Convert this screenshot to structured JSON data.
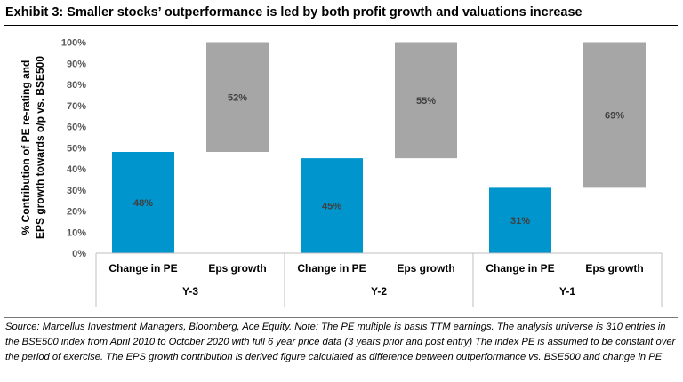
{
  "title": "Exhibit 3: Smaller stocks’ outperformance is led by both profit growth and valuations increase",
  "source_note": "Source: Marcellus Investment Managers, Bloomberg, Ace Equity. Note: The PE multiple is basis TTM earnings. The analysis universe is 310 entries in the BSE500 index from April 2010 to October 2020 with full 6 year price data (3 years prior and post entry) The index PE is assumed to be constant over the period of exercise. The EPS growth contribution is derived figure calculated as difference between outperformance vs. BSE500 and change in PE",
  "chart_data": {
    "type": "bar",
    "stacked_offset": true,
    "title": "Exhibit 3: Smaller stocks’ outperformance is led by both profit growth and valuations increase",
    "ylabel_lines": [
      "% Contribution of PE re-rating and",
      "EPS growth towards o/p vs. BSE500"
    ],
    "ylim": [
      0,
      100
    ],
    "yticks": [
      0,
      10,
      20,
      30,
      40,
      50,
      60,
      70,
      80,
      90,
      100
    ],
    "ytick_labels": [
      "0%",
      "10%",
      "20%",
      "30%",
      "40%",
      "50%",
      "60%",
      "70%",
      "80%",
      "90%",
      "100%"
    ],
    "grid": false,
    "legend": "none",
    "groups": [
      {
        "label": "Y-3",
        "bars": [
          {
            "category": "Change in PE",
            "value": 48,
            "base": 0,
            "label": "48%",
            "color": "#0095CC"
          },
          {
            "category": "Eps growth",
            "value": 52,
            "base": 48,
            "label": "52%",
            "color": "#A6A6A6"
          }
        ]
      },
      {
        "label": "Y-2",
        "bars": [
          {
            "category": "Change in PE",
            "value": 45,
            "base": 0,
            "label": "45%",
            "color": "#0095CC"
          },
          {
            "category": "Eps growth",
            "value": 55,
            "base": 45,
            "label": "55%",
            "color": "#A6A6A6"
          }
        ]
      },
      {
        "label": "Y-1",
        "bars": [
          {
            "category": "Change in PE",
            "value": 31,
            "base": 0,
            "label": "31%",
            "color": "#0095CC"
          },
          {
            "category": "Eps growth",
            "value": 69,
            "base": 31,
            "label": "69%",
            "color": "#A6A6A6"
          }
        ]
      }
    ]
  }
}
